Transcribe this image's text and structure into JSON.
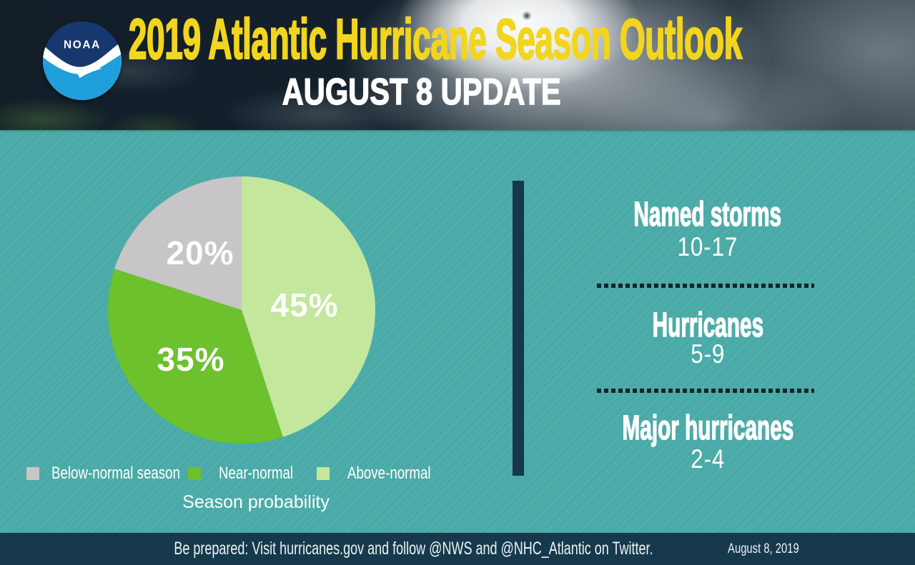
{
  "header": {
    "logo_text": "NOAA",
    "title": "2019 Atlantic Hurricane Season Outlook",
    "subtitle": "AUGUST 8 UPDATE"
  },
  "chart_data": {
    "type": "pie",
    "title": "Season probability",
    "start": "12 o'clock, clockwise",
    "slices": [
      {
        "label": "Above-normal",
        "value": 45,
        "display": "45%",
        "color": "#C3E79C"
      },
      {
        "label": "Near-normal",
        "value": 35,
        "display": "35%",
        "color": "#6CC12C"
      },
      {
        "label": "Below-normal season",
        "value": 20,
        "display": "20%",
        "color": "#C7C5C8"
      }
    ],
    "legend_position": "bottom",
    "legend": [
      {
        "label": "Below-normal season",
        "color": "#C7C5C8"
      },
      {
        "label": "Near-normal",
        "color": "#6CC12C"
      },
      {
        "label": "Above-normal",
        "color": "#C3E79C"
      }
    ]
  },
  "outlook": {
    "items": [
      {
        "label": "Named storms",
        "range": "10-17"
      },
      {
        "label": "Hurricanes",
        "range": "5-9"
      },
      {
        "label": "Major hurricanes",
        "range": "2-4"
      }
    ]
  },
  "footer": {
    "message": "Be prepared: Visit hurricanes.gov and follow @NWS and @NHC_Atlantic on Twitter.",
    "date": "August 8, 2019"
  },
  "colors": {
    "background_teal": "#4BACA9",
    "title_yellow": "#F2D51F",
    "footer_navy": "#17394C",
    "divider_navy": "#16384A",
    "dash_dark": "#14232B",
    "text_white": "#FFFFFF",
    "noaa_dark_blue": "#16386E",
    "noaa_light_blue": "#1FA0DC"
  }
}
